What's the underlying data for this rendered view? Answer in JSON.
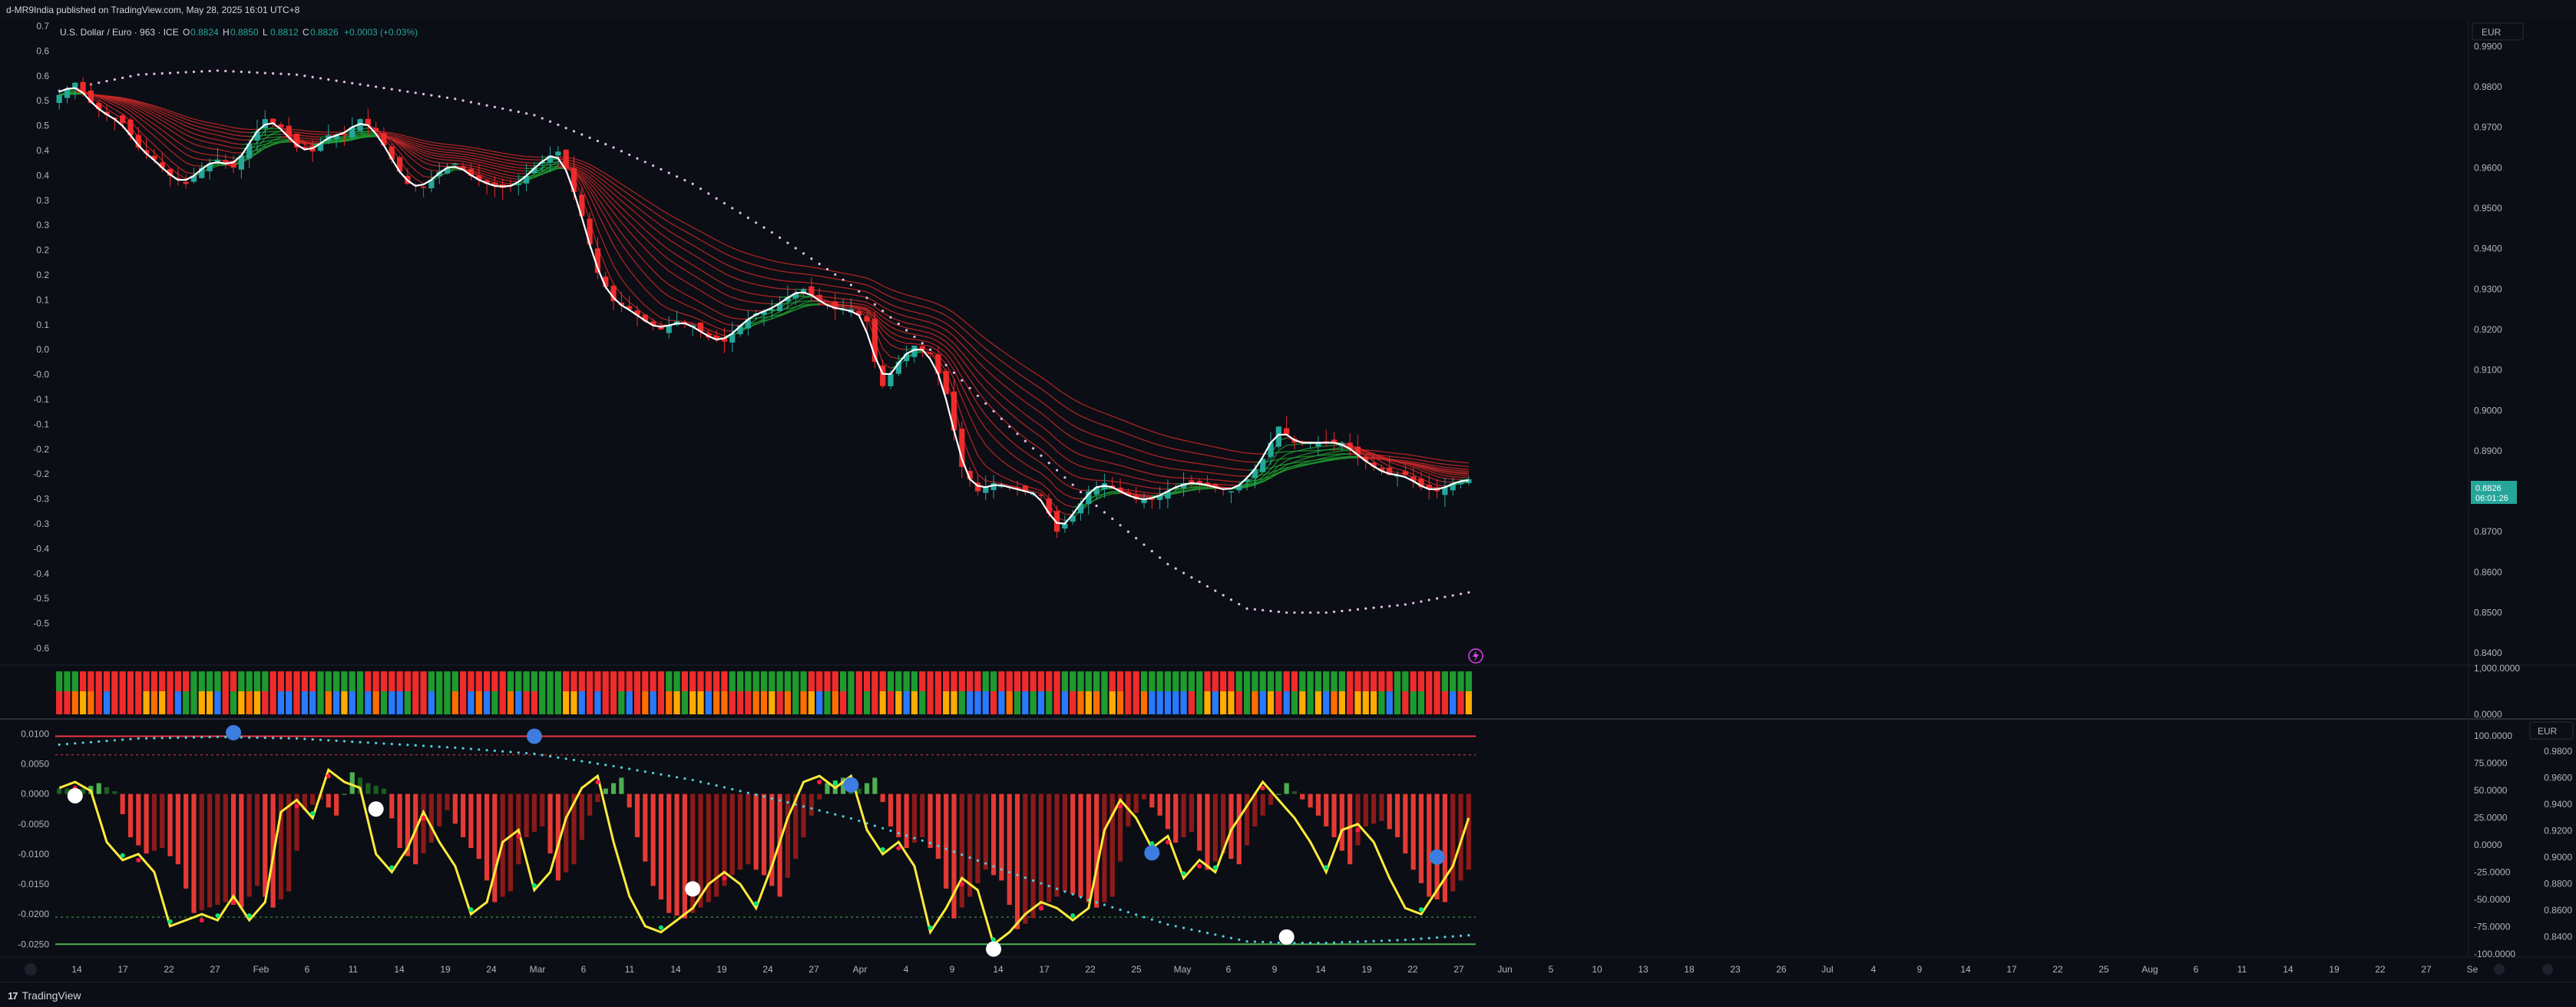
{
  "header": {
    "publisher_line": "d-MR9India published on TradingView.com, May 28, 2025 16:01 UTC+8"
  },
  "legend": {
    "symbol": "U.S. Dollar / Euro · 963 · ICE",
    "o_label": "O",
    "o_value": "0.8824",
    "h_label": "H",
    "h_value": "0.8850",
    "l_label": "L",
    "l_value": "0.8812",
    "c_label": "C",
    "c_value": "0.8826",
    "change": "+0.0003 (+0.03%)"
  },
  "currency_label": "EUR",
  "currency_label_lower": "EUR",
  "price_tag": {
    "price": "0.8826",
    "countdown": "06:01:26"
  },
  "lightning_icon": "lightning-icon",
  "footer": {
    "brand": "TradingView",
    "brand_icon": "tv-logo-icon"
  },
  "colors": {
    "background": "#0b0e14",
    "up": "#26a69a",
    "down": "#ef2b2b",
    "green_ribbon": "#1e9a2f",
    "red_ribbon": "#c62828",
    "yellow_osc": "#ffeb3b",
    "cyan_dots": "#4dd0e1",
    "pink_dots": "#e1bee7",
    "blue_dot": "#3d7ce0",
    "ob_line": "#f23645",
    "os_line": "#4caf50"
  },
  "chart_data": {
    "type": "candlestick",
    "left_axis_ticks": [
      "0.7",
      "0.6",
      "0.6",
      "0.5",
      "0.5",
      "0.4",
      "0.4",
      "0.3",
      "0.3",
      "0.2",
      "0.2",
      "0.1",
      "0.1",
      "0.0",
      "-0.0",
      "-0.1",
      "-0.1",
      "-0.2",
      "-0.2",
      "-0.3",
      "-0.3",
      "-0.4",
      "-0.4",
      "-0.5",
      "-0.5",
      "-0.6"
    ],
    "right_axis_ticks": [
      "0.9900",
      "0.9800",
      "0.9700",
      "0.9600",
      "0.9500",
      "0.9400",
      "0.9300",
      "0.9200",
      "0.9100",
      "0.9000",
      "0.8900",
      "0.8800",
      "0.8700",
      "0.8600",
      "0.8500",
      "0.8400"
    ],
    "volume_axis_ticks": [
      "1,000.0000",
      "0.0000"
    ],
    "osc_left_ticks": [
      "0.0100",
      "0.0050",
      "0.0000",
      "-0.0050",
      "-0.0100",
      "-0.0150",
      "-0.0200",
      "-0.0250"
    ],
    "osc_right_ticks_a": [
      "100.0000",
      "75.0000",
      "50.0000",
      "25.0000",
      "0.0000",
      "-25.0000",
      "-50.0000",
      "-75.0000",
      "-100.0000"
    ],
    "osc_right_ticks_b": [
      "0.9800",
      "0.9600",
      "0.9400",
      "0.9200",
      "0.9000",
      "0.8800",
      "0.8600",
      "0.8400"
    ],
    "x_tick_labels": [
      "14",
      "17",
      "22",
      "27",
      "Feb",
      "6",
      "11",
      "14",
      "19",
      "24",
      "Mar",
      "6",
      "11",
      "14",
      "19",
      "24",
      "27",
      "Apr",
      "4",
      "9",
      "14",
      "17",
      "22",
      "25",
      "May",
      "6",
      "9",
      "14",
      "19",
      "22",
      "27",
      "Jun",
      "5",
      "10",
      "13",
      "18",
      "23",
      "26",
      "Jul",
      "4",
      "9",
      "14",
      "17",
      "22",
      "25",
      "Aug",
      "6",
      "11",
      "14",
      "19",
      "22",
      "27",
      "Se"
    ],
    "price_path": [
      [
        0,
        0.978
      ],
      [
        2,
        0.981
      ],
      [
        4,
        0.976
      ],
      [
        6,
        0.973
      ],
      [
        8,
        0.971
      ],
      [
        10,
        0.965
      ],
      [
        12,
        0.962
      ],
      [
        14,
        0.958
      ],
      [
        16,
        0.956
      ],
      [
        18,
        0.96
      ],
      [
        20,
        0.962
      ],
      [
        22,
        0.96
      ],
      [
        24,
        0.966
      ],
      [
        26,
        0.972
      ],
      [
        28,
        0.97
      ],
      [
        30,
        0.965
      ],
      [
        32,
        0.964
      ],
      [
        34,
        0.968
      ],
      [
        36,
        0.968
      ],
      [
        38,
        0.972
      ],
      [
        40,
        0.969
      ],
      [
        42,
        0.962
      ],
      [
        44,
        0.956
      ],
      [
        46,
        0.955
      ],
      [
        48,
        0.959
      ],
      [
        50,
        0.961
      ],
      [
        52,
        0.958
      ],
      [
        54,
        0.956
      ],
      [
        56,
        0.955
      ],
      [
        58,
        0.956
      ],
      [
        60,
        0.96
      ],
      [
        62,
        0.963
      ],
      [
        63,
        0.964
      ],
      [
        64,
        0.96
      ],
      [
        66,
        0.948
      ],
      [
        68,
        0.934
      ],
      [
        70,
        0.927
      ],
      [
        72,
        0.925
      ],
      [
        74,
        0.922
      ],
      [
        76,
        0.92
      ],
      [
        78,
        0.922
      ],
      [
        80,
        0.921
      ],
      [
        82,
        0.918
      ],
      [
        84,
        0.917
      ],
      [
        86,
        0.921
      ],
      [
        88,
        0.924
      ],
      [
        90,
        0.925
      ],
      [
        92,
        0.928
      ],
      [
        94,
        0.93
      ],
      [
        96,
        0.927
      ],
      [
        98,
        0.925
      ],
      [
        100,
        0.925
      ],
      [
        102,
        0.922
      ],
      [
        103,
        0.912
      ],
      [
        104,
        0.906
      ],
      [
        106,
        0.912
      ],
      [
        108,
        0.916
      ],
      [
        110,
        0.914
      ],
      [
        112,
        0.904
      ],
      [
        114,
        0.886
      ],
      [
        116,
        0.88
      ],
      [
        118,
        0.882
      ],
      [
        120,
        0.881
      ],
      [
        122,
        0.88
      ],
      [
        124,
        0.879
      ],
      [
        126,
        0.87
      ],
      [
        128,
        0.874
      ],
      [
        130,
        0.88
      ],
      [
        132,
        0.882
      ],
      [
        134,
        0.88
      ],
      [
        136,
        0.878
      ],
      [
        138,
        0.878
      ],
      [
        140,
        0.88
      ],
      [
        142,
        0.882
      ],
      [
        144,
        0.882
      ],
      [
        146,
        0.881
      ],
      [
        148,
        0.88
      ],
      [
        150,
        0.883
      ],
      [
        152,
        0.888
      ],
      [
        154,
        0.896
      ],
      [
        156,
        0.892
      ],
      [
        158,
        0.892
      ],
      [
        160,
        0.892
      ],
      [
        162,
        0.892
      ],
      [
        164,
        0.889
      ],
      [
        166,
        0.886
      ],
      [
        168,
        0.884
      ],
      [
        170,
        0.884
      ],
      [
        172,
        0.881
      ],
      [
        174,
        0.88
      ],
      [
        176,
        0.882
      ],
      [
        178,
        0.883
      ]
    ],
    "price_min": 0.837,
    "price_max": 0.995,
    "n_bars": 179,
    "long_ma_path": [
      [
        0,
        0.979
      ],
      [
        10,
        0.983
      ],
      [
        20,
        0.984
      ],
      [
        30,
        0.983
      ],
      [
        40,
        0.98
      ],
      [
        50,
        0.977
      ],
      [
        60,
        0.973
      ],
      [
        70,
        0.965
      ],
      [
        80,
        0.956
      ],
      [
        90,
        0.944
      ],
      [
        100,
        0.931
      ],
      [
        110,
        0.915
      ],
      [
        120,
        0.896
      ],
      [
        130,
        0.878
      ],
      [
        140,
        0.862
      ],
      [
        150,
        0.851
      ],
      [
        155,
        0.85
      ],
      [
        160,
        0.85
      ],
      [
        170,
        0.852
      ],
      [
        178,
        0.855
      ]
    ],
    "osc_path": [
      [
        0,
        0.001
      ],
      [
        2,
        0.002
      ],
      [
        4,
        0.0005
      ],
      [
        6,
        -0.008
      ],
      [
        8,
        -0.011
      ],
      [
        10,
        -0.01
      ],
      [
        12,
        -0.013
      ],
      [
        14,
        -0.022
      ],
      [
        16,
        -0.021
      ],
      [
        18,
        -0.02
      ],
      [
        20,
        -0.021
      ],
      [
        22,
        -0.017
      ],
      [
        24,
        -0.021
      ],
      [
        26,
        -0.018
      ],
      [
        28,
        -0.003
      ],
      [
        30,
        -0.001
      ],
      [
        32,
        -0.004
      ],
      [
        34,
        0.004
      ],
      [
        36,
        0.002
      ],
      [
        38,
        0.001
      ],
      [
        40,
        -0.01
      ],
      [
        42,
        -0.013
      ],
      [
        44,
        -0.009
      ],
      [
        46,
        -0.003
      ],
      [
        48,
        -0.008
      ],
      [
        50,
        -0.012
      ],
      [
        52,
        -0.02
      ],
      [
        54,
        -0.018
      ],
      [
        56,
        -0.008
      ],
      [
        58,
        -0.006
      ],
      [
        60,
        -0.016
      ],
      [
        62,
        -0.013
      ],
      [
        64,
        -0.004
      ],
      [
        66,
        0.001
      ],
      [
        68,
        0.003
      ],
      [
        70,
        -0.008
      ],
      [
        72,
        -0.017
      ],
      [
        74,
        -0.022
      ],
      [
        76,
        -0.023
      ],
      [
        78,
        -0.021
      ],
      [
        80,
        -0.019
      ],
      [
        82,
        -0.015
      ],
      [
        84,
        -0.013
      ],
      [
        86,
        -0.015
      ],
      [
        88,
        -0.019
      ],
      [
        90,
        -0.012
      ],
      [
        92,
        -0.004
      ],
      [
        94,
        0.002
      ],
      [
        96,
        0.003
      ],
      [
        98,
        0.001
      ],
      [
        100,
        0.003
      ],
      [
        102,
        -0.006
      ],
      [
        104,
        -0.01
      ],
      [
        106,
        -0.008
      ],
      [
        108,
        -0.012
      ],
      [
        110,
        -0.023
      ],
      [
        112,
        -0.019
      ],
      [
        114,
        -0.014
      ],
      [
        116,
        -0.016
      ],
      [
        118,
        -0.025
      ],
      [
        120,
        -0.023
      ],
      [
        122,
        -0.02
      ],
      [
        124,
        -0.018
      ],
      [
        126,
        -0.019
      ],
      [
        128,
        -0.021
      ],
      [
        130,
        -0.019
      ],
      [
        132,
        -0.006
      ],
      [
        134,
        -0.001
      ],
      [
        136,
        -0.004
      ],
      [
        138,
        -0.009
      ],
      [
        140,
        -0.007
      ],
      [
        142,
        -0.014
      ],
      [
        144,
        -0.011
      ],
      [
        146,
        -0.013
      ],
      [
        148,
        -0.006
      ],
      [
        150,
        -0.002
      ],
      [
        152,
        0.002
      ],
      [
        154,
        -0.001
      ],
      [
        156,
        -0.004
      ],
      [
        158,
        -0.008
      ],
      [
        160,
        -0.013
      ],
      [
        162,
        -0.006
      ],
      [
        164,
        -0.005
      ],
      [
        166,
        -0.008
      ],
      [
        168,
        -0.014
      ],
      [
        170,
        -0.019
      ],
      [
        172,
        -0.02
      ],
      [
        174,
        -0.016
      ],
      [
        176,
        -0.012
      ],
      [
        178,
        -0.004
      ]
    ],
    "osc_min": -0.0265,
    "osc_max": 0.0112,
    "white_dots": [
      [
        2,
        -0.0003
      ],
      [
        40,
        -0.0025
      ],
      [
        80,
        -0.0158
      ],
      [
        118,
        -0.0258
      ],
      [
        155,
        -0.0238
      ]
    ],
    "blue_dots": [
      [
        22,
        0.0102
      ],
      [
        60,
        0.0096
      ],
      [
        100,
        0.0015
      ],
      [
        138,
        -0.0098
      ],
      [
        174,
        -0.0105
      ]
    ]
  }
}
